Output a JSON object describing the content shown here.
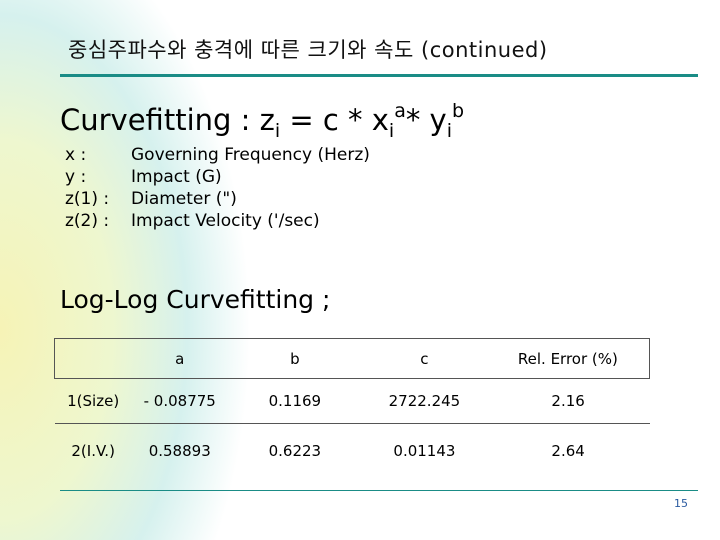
{
  "slide": {
    "title": "중심주파수와 충격에 따른  크기와  속도 (continued)",
    "formula": {
      "lead": "Curvefitting : z",
      "sub1": "i",
      "mid1": " = c * x",
      "sub2": "i",
      "sup_a": "a",
      "mid2": "* y",
      "sub3": "i",
      "sup_b": "b"
    },
    "definitions": [
      {
        "label": "x :",
        "text": "Governing Frequency (Herz)"
      },
      {
        "label": "y :",
        "text": "Impact (G)"
      },
      {
        "label": "z(1) :",
        "text": "Diameter (\")"
      },
      {
        "label": "z(2) :",
        "text": "Impact Velocity ('/sec)"
      }
    ],
    "subheading": "Log-Log Curvefitting ;",
    "table": {
      "headers": [
        "",
        "a",
        "b",
        "c",
        "Rel. Error (%)"
      ],
      "rows": [
        [
          "1(Size)",
          "- 0.08775",
          "0.1169",
          "2722.245",
          "2.16"
        ],
        [
          "2(I.V.)",
          "0.58893",
          "0.6223",
          "0.01143",
          "2.64"
        ]
      ]
    },
    "page_number": "15"
  },
  "colors": {
    "rule": "#1a8c86",
    "page_number": "#2a5aa0"
  }
}
